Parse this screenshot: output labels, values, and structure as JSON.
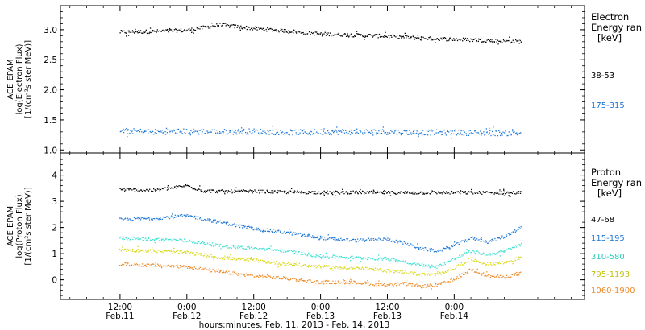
{
  "chart_data": [
    {
      "type": "scatter",
      "panel": "electron",
      "ylabel": [
        "ACE EPAM",
        "log(Electron Flux)",
        "[1/(cm²s ster MeV)]"
      ],
      "ylim": [
        0.95,
        3.4
      ],
      "yticks": [
        1.0,
        1.5,
        2.0,
        2.5,
        3.0
      ],
      "legend_title": [
        "Electron",
        "Energy ran",
        "[keV]"
      ],
      "series": [
        {
          "name": "38-53",
          "color": "#000000",
          "x": [
            0,
            6,
            12,
            18,
            24,
            30,
            36,
            42,
            48,
            54,
            60,
            66,
            72
          ],
          "y": [
            2.96,
            2.97,
            2.99,
            3.08,
            3.02,
            2.98,
            2.93,
            2.91,
            2.89,
            2.86,
            2.84,
            2.82,
            2.8
          ]
        },
        {
          "name": "175-315",
          "color": "#1f77d4",
          "x": [
            0,
            6,
            12,
            18,
            24,
            30,
            36,
            42,
            48,
            54,
            60,
            66,
            72
          ],
          "y": [
            1.32,
            1.3,
            1.31,
            1.3,
            1.31,
            1.29,
            1.3,
            1.3,
            1.3,
            1.29,
            1.29,
            1.28,
            1.28
          ]
        }
      ]
    },
    {
      "type": "scatter",
      "panel": "proton",
      "ylabel": [
        "ACE EPAM",
        "log(Proton Flux)",
        "[1/(cm²s ster MeV)]"
      ],
      "ylim": [
        -0.75,
        4.85
      ],
      "yticks": [
        0,
        1,
        2,
        3,
        4
      ],
      "legend_title": [
        "Proton",
        "Energy ran",
        "[keV]"
      ],
      "series": [
        {
          "name": "47-68",
          "color": "#000000",
          "x": [
            0,
            6,
            9,
            12,
            15,
            18,
            21,
            24,
            30,
            36,
            42,
            48,
            54,
            60,
            66,
            72
          ],
          "y": [
            3.45,
            3.42,
            3.5,
            3.6,
            3.4,
            3.38,
            3.38,
            3.38,
            3.35,
            3.34,
            3.34,
            3.33,
            3.33,
            3.33,
            3.33,
            3.33
          ]
        },
        {
          "name": "115-195",
          "color": "#1f77d4",
          "x": [
            0,
            6,
            12,
            18,
            24,
            30,
            36,
            42,
            48,
            51,
            54,
            57,
            60,
            63,
            66,
            69,
            72
          ],
          "y": [
            2.3,
            2.35,
            2.45,
            2.2,
            1.95,
            1.8,
            1.6,
            1.5,
            1.55,
            1.4,
            1.2,
            1.1,
            1.3,
            1.6,
            1.45,
            1.65,
            2.0
          ]
        },
        {
          "name": "310-580",
          "color": "#3ee0d0",
          "x": [
            0,
            6,
            12,
            18,
            24,
            30,
            36,
            42,
            48,
            51,
            54,
            57,
            60,
            63,
            66,
            69,
            72
          ],
          "y": [
            1.6,
            1.55,
            1.5,
            1.3,
            1.2,
            1.1,
            0.9,
            0.85,
            0.8,
            0.7,
            0.55,
            0.5,
            0.8,
            1.1,
            0.95,
            1.1,
            1.35
          ]
        },
        {
          "name": "795-1193",
          "color": "#d8d81a",
          "x": [
            0,
            6,
            12,
            18,
            24,
            30,
            36,
            42,
            48,
            51,
            54,
            57,
            60,
            63,
            66,
            69,
            72
          ],
          "y": [
            1.15,
            1.1,
            1.05,
            0.85,
            0.75,
            0.6,
            0.5,
            0.45,
            0.35,
            0.3,
            0.2,
            0.2,
            0.45,
            0.8,
            0.6,
            0.65,
            0.85
          ]
        },
        {
          "name": "1060-1900",
          "color": "#ee8a2a",
          "x": [
            0,
            6,
            12,
            18,
            24,
            30,
            36,
            42,
            48,
            51,
            54,
            57,
            60,
            63,
            66,
            69,
            72
          ],
          "y": [
            0.6,
            0.55,
            0.5,
            0.3,
            0.15,
            0.05,
            -0.1,
            -0.1,
            -0.2,
            -0.15,
            -0.25,
            -0.2,
            0.0,
            0.4,
            0.15,
            0.1,
            0.25
          ]
        }
      ]
    }
  ],
  "x_axis": {
    "label": "hours:minutes, Feb. 11, 2013 - Feb. 14, 2013",
    "xlim": [
      -10.7,
      83.4
    ],
    "ticks": [
      {
        "x": 0,
        "time": "12:00",
        "date": "Feb.11"
      },
      {
        "x": 12,
        "time": "0:00",
        "date": "Feb.12"
      },
      {
        "x": 24,
        "time": "12:00",
        "date": "Feb.12"
      },
      {
        "x": 36,
        "time": "0:00",
        "date": "Feb.13"
      },
      {
        "x": 48,
        "time": "12:00",
        "date": "Feb.13"
      },
      {
        "x": 60,
        "time": "0:00",
        "date": "Feb.14"
      }
    ]
  }
}
